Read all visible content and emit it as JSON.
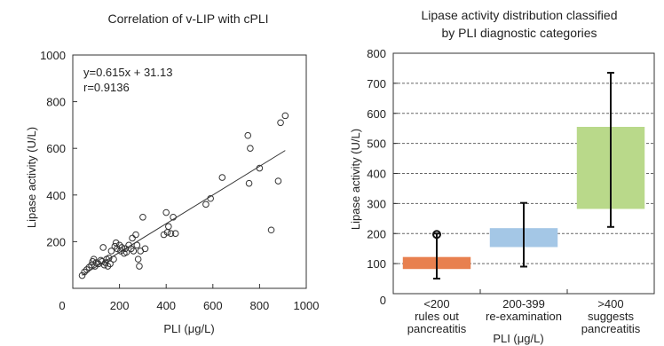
{
  "chart_data": [
    {
      "type": "scatter",
      "title": "Correlation of v-LIP with cPLI",
      "xlabel": "PLI (μg/L)",
      "ylabel": "Lipase activity (U/L)",
      "xlim": [
        0,
        1000
      ],
      "ylim": [
        0,
        1000
      ],
      "xticks": [
        "0",
        "200",
        "400",
        "600",
        "800",
        "1000"
      ],
      "yticks": [
        "200",
        "400",
        "600",
        "800",
        "1000"
      ],
      "grid": false,
      "annotation_lines": [
        "y=0.615x + 31.13",
        "r=0.9136"
      ],
      "regression": {
        "slope": 0.615,
        "intercept": 31.13
      },
      "x": [
        40,
        50,
        60,
        70,
        80,
        85,
        90,
        95,
        100,
        110,
        120,
        125,
        130,
        135,
        140,
        145,
        150,
        155,
        160,
        165,
        175,
        180,
        185,
        190,
        200,
        205,
        210,
        220,
        225,
        230,
        240,
        250,
        255,
        260,
        270,
        275,
        280,
        285,
        290,
        300,
        310,
        390,
        400,
        405,
        410,
        420,
        430,
        440,
        570,
        590,
        640,
        750,
        755,
        760,
        800,
        850,
        880,
        890,
        910
      ],
      "y": [
        55,
        70,
        80,
        90,
        100,
        115,
        125,
        95,
        110,
        105,
        120,
        115,
        175,
        100,
        110,
        125,
        95,
        130,
        105,
        160,
        125,
        180,
        195,
        170,
        185,
        160,
        175,
        150,
        170,
        155,
        185,
        170,
        215,
        160,
        230,
        185,
        125,
        95,
        160,
        305,
        170,
        230,
        325,
        240,
        265,
        235,
        305,
        235,
        360,
        385,
        475,
        655,
        450,
        600,
        515,
        250,
        460,
        710,
        740
      ]
    },
    {
      "type": "bar",
      "title": "Lipase activity distribution classified by PLI diagnostic categories",
      "title_lines": [
        "Lipase activity distribution classified",
        "by PLI diagnostic categories"
      ],
      "xlabel": "PLI (μg/L)",
      "ylabel": "Lipase activity (U/L)",
      "ylim": [
        0,
        800
      ],
      "yticks": [
        "0",
        "100",
        "200",
        "300",
        "400",
        "500",
        "600",
        "700",
        "800"
      ],
      "grid": true,
      "categories": [
        {
          "lines": [
            "<200",
            "rules out",
            "pancreatitis"
          ],
          "box_low": 82,
          "box_high": 122,
          "whisker_low": 50,
          "whisker_high": 200,
          "outlier": 197,
          "color": "#e8804f"
        },
        {
          "lines": [
            "200-399",
            "re-examination"
          ],
          "box_low": 155,
          "box_high": 218,
          "whisker_low": 90,
          "whisker_high": 302,
          "color": "#a4c7e6"
        },
        {
          "lines": [
            ">400",
            "suggests",
            "pancreatitis"
          ],
          "box_low": 282,
          "box_high": 555,
          "whisker_low": 222,
          "whisker_high": 735,
          "color": "#b9d98a"
        }
      ]
    }
  ]
}
